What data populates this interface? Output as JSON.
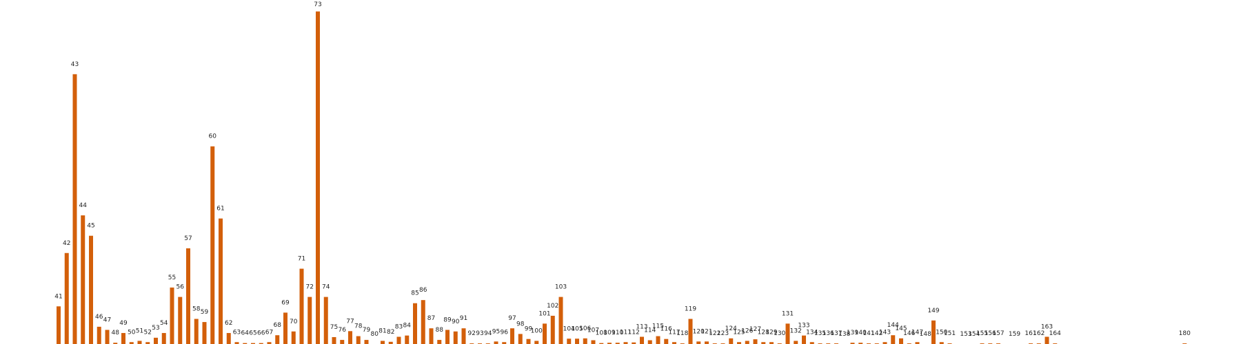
{
  "colors": {
    "bar": "#d35f0a",
    "label": "#222222",
    "background": "#ffffff"
  },
  "chart_data": {
    "type": "bar",
    "title": "",
    "xlabel": "",
    "ylabel": "",
    "grid": false,
    "legend": "none",
    "ylim": [
      0,
      105
    ],
    "bars": [
      {
        "label": "41",
        "value": 12
      },
      {
        "label": "42",
        "value": 29
      },
      {
        "label": "43",
        "value": 86
      },
      {
        "label": "44",
        "value": 41
      },
      {
        "label": "45",
        "value": 34.5
      },
      {
        "label": "46",
        "value": 5.5
      },
      {
        "label": "47",
        "value": 4.5
      },
      {
        "label": "48",
        "value": 0.4
      },
      {
        "label": "49",
        "value": 3.5
      },
      {
        "label": "50",
        "value": 0.6
      },
      {
        "label": "51",
        "value": 1
      },
      {
        "label": "52",
        "value": 0.6
      },
      {
        "label": "53",
        "value": 2
      },
      {
        "label": "54",
        "value": 3.5
      },
      {
        "label": "55",
        "value": 18
      },
      {
        "label": "56",
        "value": 15
      },
      {
        "label": "57",
        "value": 30.5
      },
      {
        "label": "58",
        "value": 8
      },
      {
        "label": "59",
        "value": 7
      },
      {
        "label": "60",
        "value": 63
      },
      {
        "label": "61",
        "value": 40
      },
      {
        "label": "62",
        "value": 3.5
      },
      {
        "label": "63",
        "value": 0.6
      },
      {
        "label": "64",
        "value": 0.3
      },
      {
        "label": "65",
        "value": 0.3
      },
      {
        "label": "66",
        "value": 0.3
      },
      {
        "label": "67",
        "value": 0.6
      },
      {
        "label": "68",
        "value": 2.8
      },
      {
        "label": "69",
        "value": 10
      },
      {
        "label": "70",
        "value": 4
      },
      {
        "label": "71",
        "value": 24
      },
      {
        "label": "72",
        "value": 15
      },
      {
        "label": "73",
        "value": 106
      },
      {
        "label": "74",
        "value": 15
      },
      {
        "label": "75",
        "value": 2.2
      },
      {
        "label": "76",
        "value": 1.3
      },
      {
        "label": "77",
        "value": 4.1
      },
      {
        "label": "78",
        "value": 2.5
      },
      {
        "label": "79",
        "value": 1.3
      },
      {
        "label": "80",
        "value": 0
      },
      {
        "label": "81",
        "value": 1
      },
      {
        "label": "82",
        "value": 0.7
      },
      {
        "label": "83",
        "value": 2.3
      },
      {
        "label": "84",
        "value": 2.7
      },
      {
        "label": "85",
        "value": 13
      },
      {
        "label": "86",
        "value": 14
      },
      {
        "label": "87",
        "value": 5
      },
      {
        "label": "88",
        "value": 1.3
      },
      {
        "label": "89",
        "value": 4.5
      },
      {
        "label": "90",
        "value": 4
      },
      {
        "label": "91",
        "value": 5
      },
      {
        "label": "92",
        "value": 0.2
      },
      {
        "label": "93",
        "value": 0.2
      },
      {
        "label": "94",
        "value": 0.2
      },
      {
        "label": "95",
        "value": 0.8
      },
      {
        "label": "96",
        "value": 0.6
      },
      {
        "label": "97",
        "value": 5
      },
      {
        "label": "98",
        "value": 3.2
      },
      {
        "label": "99",
        "value": 1.6
      },
      {
        "label": "100",
        "value": 1
      },
      {
        "label": "101",
        "value": 6.5
      },
      {
        "label": "102",
        "value": 9
      },
      {
        "label": "103",
        "value": 15
      },
      {
        "label": "104",
        "value": 1.7
      },
      {
        "label": "105",
        "value": 1.7
      },
      {
        "label": "106",
        "value": 1.8
      },
      {
        "label": "107",
        "value": 1.2
      },
      {
        "label": "108",
        "value": 0.3
      },
      {
        "label": "109",
        "value": 0.4
      },
      {
        "label": "110",
        "value": 0.4
      },
      {
        "label": "111",
        "value": 0.6
      },
      {
        "label": "112",
        "value": 0.5
      },
      {
        "label": "113",
        "value": 2.3
      },
      {
        "label": "114",
        "value": 1.2
      },
      {
        "label": "115",
        "value": 2.5
      },
      {
        "label": "116",
        "value": 1.6
      },
      {
        "label": "117",
        "value": 0.6
      },
      {
        "label": "118",
        "value": 0.2
      },
      {
        "label": "119",
        "value": 8
      },
      {
        "label": "120",
        "value": 0.8
      },
      {
        "label": "121",
        "value": 0.8
      },
      {
        "label": "122",
        "value": 0.2
      },
      {
        "label": "123",
        "value": 0.2
      },
      {
        "label": "124",
        "value": 1.8
      },
      {
        "label": "125",
        "value": 0.6
      },
      {
        "label": "126",
        "value": 1
      },
      {
        "label": "127",
        "value": 1.5
      },
      {
        "label": "128",
        "value": 0.6
      },
      {
        "label": "129",
        "value": 0.6
      },
      {
        "label": "130",
        "value": 0.2
      },
      {
        "label": "131",
        "value": 6.5
      },
      {
        "label": "132",
        "value": 1
      },
      {
        "label": "133",
        "value": 2.7
      },
      {
        "label": "134",
        "value": 0.6
      },
      {
        "label": "135",
        "value": 0.2
      },
      {
        "label": "136",
        "value": 0.2
      },
      {
        "label": "137",
        "value": 0.2
      },
      {
        "label": "138",
        "value": 0
      },
      {
        "label": "139",
        "value": 0.4
      },
      {
        "label": "140",
        "value": 0.4
      },
      {
        "label": "141",
        "value": 0.2
      },
      {
        "label": "142",
        "value": 0.2
      },
      {
        "label": "143",
        "value": 0.6
      },
      {
        "label": "144",
        "value": 2.8
      },
      {
        "label": "145",
        "value": 1.8
      },
      {
        "label": "146",
        "value": 0.2
      },
      {
        "label": "147",
        "value": 0.6
      },
      {
        "label": "148",
        "value": 0
      },
      {
        "label": "149",
        "value": 7.5
      },
      {
        "label": "150",
        "value": 0.6
      },
      {
        "label": "151",
        "value": 0.2
      },
      {
        "label": "153",
        "value": 0
      },
      {
        "label": "154",
        "value": 0
      },
      {
        "label": "155",
        "value": 0.2
      },
      {
        "label": "156",
        "value": 0.2
      },
      {
        "label": "157",
        "value": 0.2
      },
      {
        "label": "159",
        "value": 0
      },
      {
        "label": "161",
        "value": 0.2
      },
      {
        "label": "162",
        "value": 0.2
      },
      {
        "label": "163",
        "value": 2.3
      },
      {
        "label": "164",
        "value": 0.2
      },
      {
        "label": "180",
        "value": 0.2
      }
    ]
  }
}
